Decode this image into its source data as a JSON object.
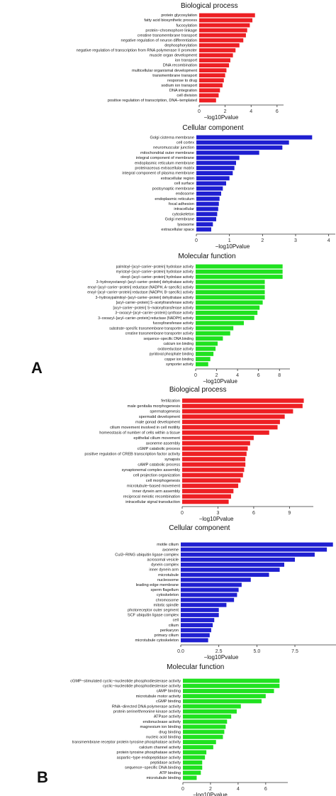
{
  "panel_labels": {
    "a": "A",
    "b": "B"
  },
  "chart_data": [
    {
      "type": "bar",
      "orientation": "horizontal",
      "title": "Biological process",
      "xlabel": "−log10Pvalue",
      "ylabel": "",
      "xlim": [
        0,
        6.5
      ],
      "xticks": [
        "0",
        "2",
        "4",
        "6"
      ],
      "grid": false,
      "color": "#ee1f23",
      "categories": [
        "protein glycosylation",
        "fatty acid biosynthetic process",
        "fucosylation",
        "protein−chromophore linkage",
        "creatine transmembrane transport",
        "negative regulation of neuron differentiation",
        "dephosphorylation",
        "negative regulation of transcription from RNA polymerase II promoter",
        "muscle organ development",
        "ion transport",
        "DNA recombination",
        "multicellular organismal development",
        "transmembrane transport",
        "response to drug",
        "sodium ion transport",
        "DNA integration",
        "cell division",
        "positive regulation of transcription, DNA−templated"
      ],
      "values": [
        4.3,
        4.1,
        3.9,
        3.7,
        3.6,
        3.4,
        3.1,
        2.8,
        2.6,
        2.4,
        2.3,
        2.1,
        2.0,
        1.9,
        1.8,
        1.6,
        1.5,
        1.3
      ]
    },
    {
      "type": "bar",
      "orientation": "horizontal",
      "title": "Cellular component",
      "xlabel": "−log10Pvalue",
      "ylabel": "",
      "xlim": [
        0,
        4.2
      ],
      "xticks": [
        "0",
        "1",
        "2",
        "3",
        "4"
      ],
      "grid": false,
      "color": "#1f1fd1",
      "categories": [
        "Golgi cisterna membrane",
        "cell cortex",
        "neuromuscular junction",
        "mitochondrial outer membrane",
        "integral component of membrane",
        "endoplasmic reticulum membrane",
        "proteinaceous extracellular matrix",
        "integral component of plasma membrane",
        "extracellular region",
        "cell surface",
        "postsynaptic membrane",
        "endosome",
        "endoplasmic reticulum",
        "focal adhesion",
        "intracellular",
        "cytoskeleton",
        "Golgi membrane",
        "lysosome",
        "extracellular space"
      ],
      "values": [
        3.5,
        2.8,
        2.6,
        1.9,
        1.3,
        1.2,
        1.15,
        1.1,
        1.0,
        0.9,
        0.8,
        0.75,
        0.7,
        0.68,
        0.66,
        0.63,
        0.6,
        0.5,
        0.45
      ]
    },
    {
      "type": "bar",
      "orientation": "horizontal",
      "title": "Molecular function",
      "xlabel": "−log10Pvalue",
      "ylabel": "",
      "xlim": [
        0,
        9
      ],
      "xticks": [
        "0",
        "2",
        "4",
        "6",
        "8"
      ],
      "grid": false,
      "color": "#1fe21f",
      "categories": [
        "palmitoyl−[acyl−carrier−protein] hydrolase activity",
        "myristoyl−[acyl−carrier−protein] hydrolase activity",
        "oleoyl−[acyl−carrier−protein] hydrolase activity",
        "3−hydroxyoctanoyl−[acyl−carrier−protein] dehydratase activity",
        "enoyl−[acyl−carrier−protein] reductase (NADPH, A−specific) activity",
        "enoyl−[acyl−carrier−protein] reductase (NADPH, B−specific) activity",
        "3−hydroxypalmitoyl−[acyl−carrier−protein] dehydratase activity",
        "[acyl−carrier−protein] S−acetyltransferase activity",
        "[acyl−carrier−protein] S−malonyltransferase activity",
        "3−oxoacyl−[acyl−carrier−protein] synthase activity",
        "3−oxoacyl−[acyl−carrier−protein] reductase (NADPH) activity",
        "fucosyltransferase activity",
        "substrate−specific transmembrane transporter activity",
        "creatine transmembrane transporter activity",
        "sequence−specific DNA binding",
        "calcium ion binding",
        "oxidoreductase activity",
        "pyridoxal phosphate binding",
        "copper ion binding",
        "symporter activity"
      ],
      "values": [
        8.3,
        8.3,
        8.3,
        6.6,
        6.6,
        6.6,
        6.6,
        6.4,
        6.1,
        5.9,
        5.6,
        4.6,
        3.6,
        3.3,
        2.6,
        2.1,
        1.9,
        1.7,
        1.4,
        1.2
      ]
    },
    {
      "type": "bar",
      "orientation": "horizontal",
      "title": "Biological process",
      "xlabel": "−log10Pvalue",
      "ylabel": "",
      "xlim": [
        0,
        11
      ],
      "xticks": [
        "0",
        "3",
        "6",
        "9"
      ],
      "grid": false,
      "color": "#ee1f23",
      "categories": [
        "fertilization",
        "male genitalia morphogenesis",
        "spermatogenesis",
        "spermatid development",
        "male gonad development",
        "cilium movement involved in cell motility",
        "homeostasis of number of cells within a tissue",
        "epithelial cilium movement",
        "axoneme assembly",
        "cGMP catabolic process",
        "positive regulation of CREB transcription factor activity",
        "synapsis",
        "cAMP catabolic process",
        "synaptonemal complex assembly",
        "cell projection organization",
        "cell morphogenesis",
        "microtubule−based movement",
        "inner dynein arm assembly",
        "reciprocal meiotic recombination",
        "intracellular signal transduction"
      ],
      "values": [
        10.2,
        10.1,
        9.3,
        8.6,
        8.2,
        8.0,
        7.3,
        6.0,
        5.7,
        5.5,
        5.4,
        5.3,
        5.3,
        5.2,
        5.1,
        4.9,
        4.7,
        4.3,
        4.1,
        3.9
      ]
    },
    {
      "type": "bar",
      "orientation": "horizontal",
      "title": "Cellular component",
      "xlabel": "−log10Pvalue",
      "ylabel": "",
      "xlim": [
        0,
        10.2
      ],
      "xticks": [
        "0.0",
        "2.5",
        "5.0",
        "7.5"
      ],
      "grid": false,
      "color": "#1f1fd1",
      "categories": [
        "motile cilium",
        "axoneme",
        "Cul3−RING ubiquitin ligase complex",
        "acrosomal vesicle",
        "dynein complex",
        "inner dynein arm",
        "microtubule",
        "nucleosome",
        "leading edge membrane",
        "sperm flagellum",
        "cytoskeleton",
        "chromosome",
        "mitotic spindle",
        "photoreceptor outer segment",
        "SCF ubiquitin ligase complex",
        "cell",
        "cilium",
        "perikaryon",
        "primary cilium",
        "microtubule cytoskeleton"
      ],
      "values": [
        10.0,
        9.6,
        8.8,
        7.5,
        6.8,
        6.5,
        5.8,
        4.6,
        4.0,
        3.8,
        3.7,
        3.5,
        3.0,
        2.5,
        2.5,
        2.2,
        2.1,
        2.0,
        1.9,
        1.8
      ]
    },
    {
      "type": "bar",
      "orientation": "horizontal",
      "title": "Molecular function",
      "xlabel": "−log10Pvalue",
      "ylabel": "",
      "xlim": [
        0,
        7.6
      ],
      "xticks": [
        "0",
        "2",
        "4",
        "6"
      ],
      "grid": false,
      "color": "#1fe21f",
      "categories": [
        "cGMP−stimulated cyclic−nucleotide phosphodiesterase activity",
        "cyclic−nucleotide phosphodiesterase activity",
        "cAMP binding",
        "microtubule motor activity",
        "cGMP binding",
        "RNA−directed DNA polymerase activity",
        "protein serine/threonine kinase activity",
        "ATPase activity",
        "endonuclease activity",
        "magnesium ion binding",
        "drug binding",
        "nucleic acid binding",
        "transmembrane receptor protein tyrosine phosphatase activity",
        "calcium channel activity",
        "protein tyrosine phosphatase activity",
        "aspartic−type endopeptidase activity",
        "peptidase activity",
        "sequence−specific DNA binding",
        "ATP binding",
        "microtubule binding"
      ],
      "values": [
        7.0,
        7.0,
        6.6,
        6.0,
        5.7,
        4.2,
        3.9,
        3.5,
        3.2,
        3.1,
        3.0,
        2.9,
        2.4,
        2.2,
        1.7,
        1.6,
        1.4,
        1.4,
        1.3,
        1.0
      ]
    }
  ]
}
